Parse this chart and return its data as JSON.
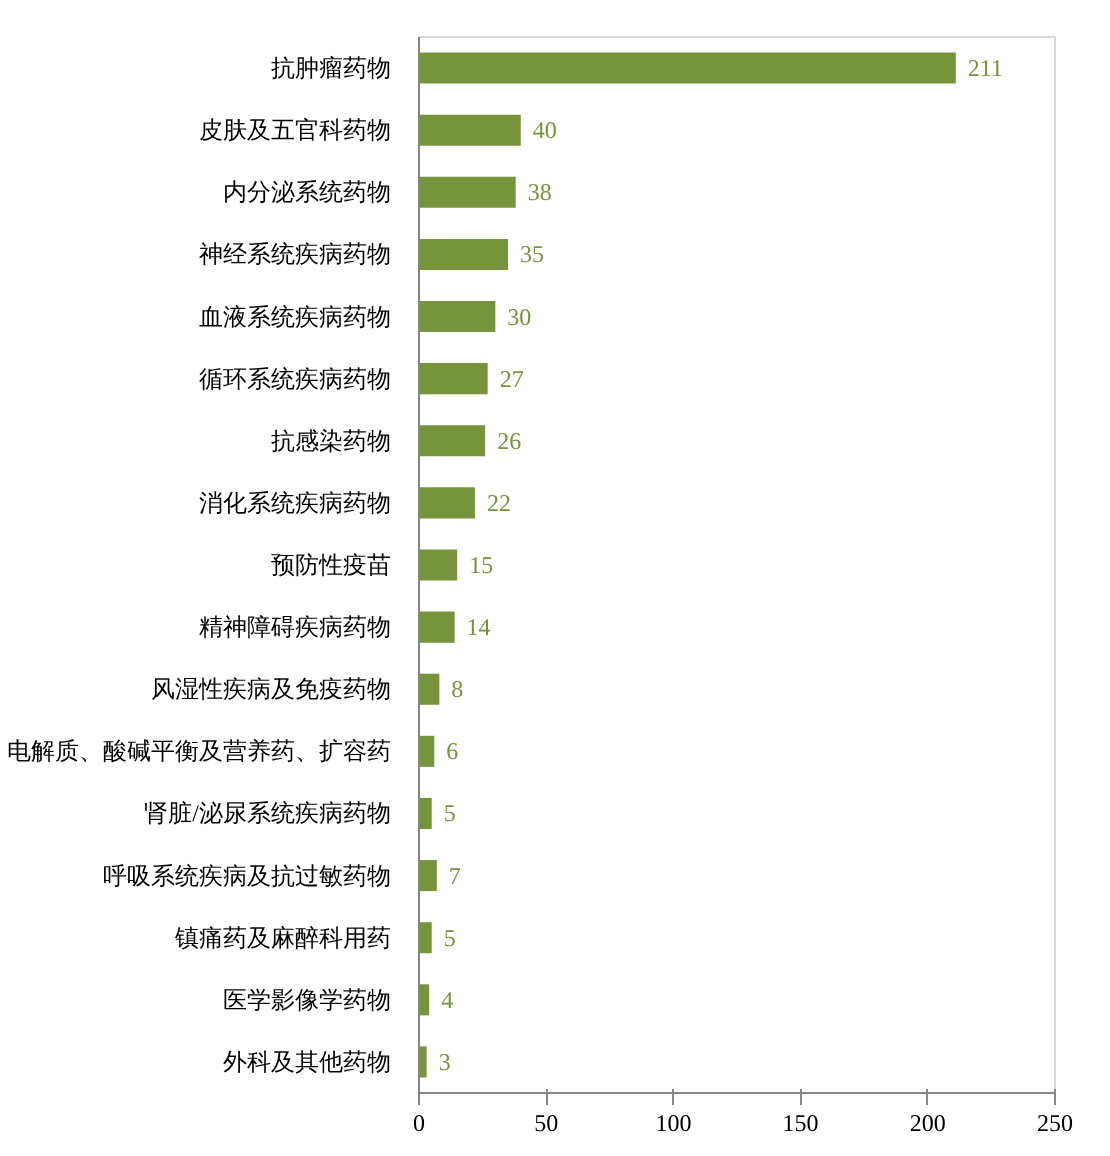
{
  "chart_data": {
    "type": "bar",
    "orientation": "horizontal",
    "categories": [
      "抗肿瘤药物",
      "皮肤及五官科药物",
      "内分泌系统药物",
      "神经系统疾病药物",
      "血液系统疾病药物",
      "循环系统疾病药物",
      "抗感染药物",
      "消化系统疾病药物",
      "预防性疫苗",
      "精神障碍疾病药物",
      "风湿性疾病及免疫药物",
      "电解质、酸碱平衡及营养药、扩容药",
      "肾脏/泌尿系统疾病药物",
      "呼吸系统疾病及抗过敏药物",
      "镇痛药及麻醉科用药",
      "医学影像学药物",
      "外科及其他药物"
    ],
    "values": [
      211,
      40,
      38,
      35,
      30,
      27,
      26,
      22,
      15,
      14,
      8,
      6,
      5,
      7,
      5,
      4,
      3
    ],
    "color": "#77933c",
    "data_labels": true,
    "grid": false,
    "xlim": [
      0,
      250
    ],
    "xticks": [
      0,
      50,
      100,
      150,
      200,
      250
    ]
  }
}
